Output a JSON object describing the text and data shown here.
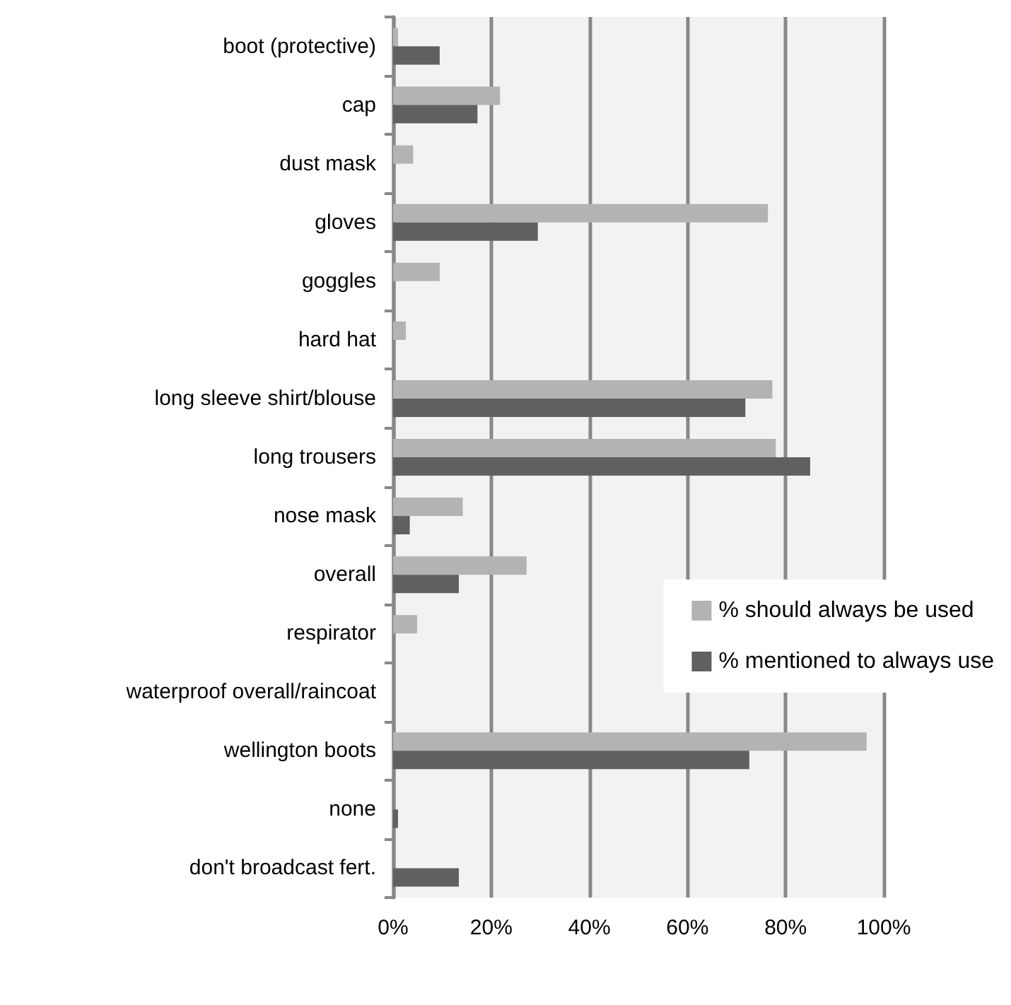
{
  "chart_data": {
    "type": "bar",
    "orientation": "horizontal",
    "categories": [
      "boot (protective)",
      "cap",
      "dust mask",
      "gloves",
      "goggles",
      "hard hat",
      "long sleeve shirt/blouse",
      "long trousers",
      "nose mask",
      "overall",
      "respirator",
      "waterproof overall/raincoat",
      "wellington boots",
      "none",
      "don't broadcast fert."
    ],
    "series": [
      {
        "name": "% should always be used",
        "color": "#b3b3b3",
        "values": [
          1,
          21.8,
          4.1,
          76.4,
          9.5,
          2.6,
          77.3,
          78,
          14.2,
          27.2,
          4.9,
          0,
          96.5,
          0,
          0
        ]
      },
      {
        "name": "% mentioned to always use",
        "color": "#606060",
        "values": [
          9.5,
          17.2,
          0,
          29.5,
          0,
          0,
          71.8,
          85,
          3.4,
          13.4,
          0,
          0,
          72.6,
          1,
          13.4
        ]
      }
    ],
    "xlim": [
      0,
      100
    ],
    "xticks": [
      {
        "value": 0,
        "label": "0%"
      },
      {
        "value": 20,
        "label": "20%"
      },
      {
        "value": 40,
        "label": "40%"
      },
      {
        "value": 60,
        "label": "60%"
      },
      {
        "value": 80,
        "label": "80%"
      },
      {
        "value": 100,
        "label": "100%"
      }
    ],
    "grid": "x",
    "legend": "right"
  }
}
